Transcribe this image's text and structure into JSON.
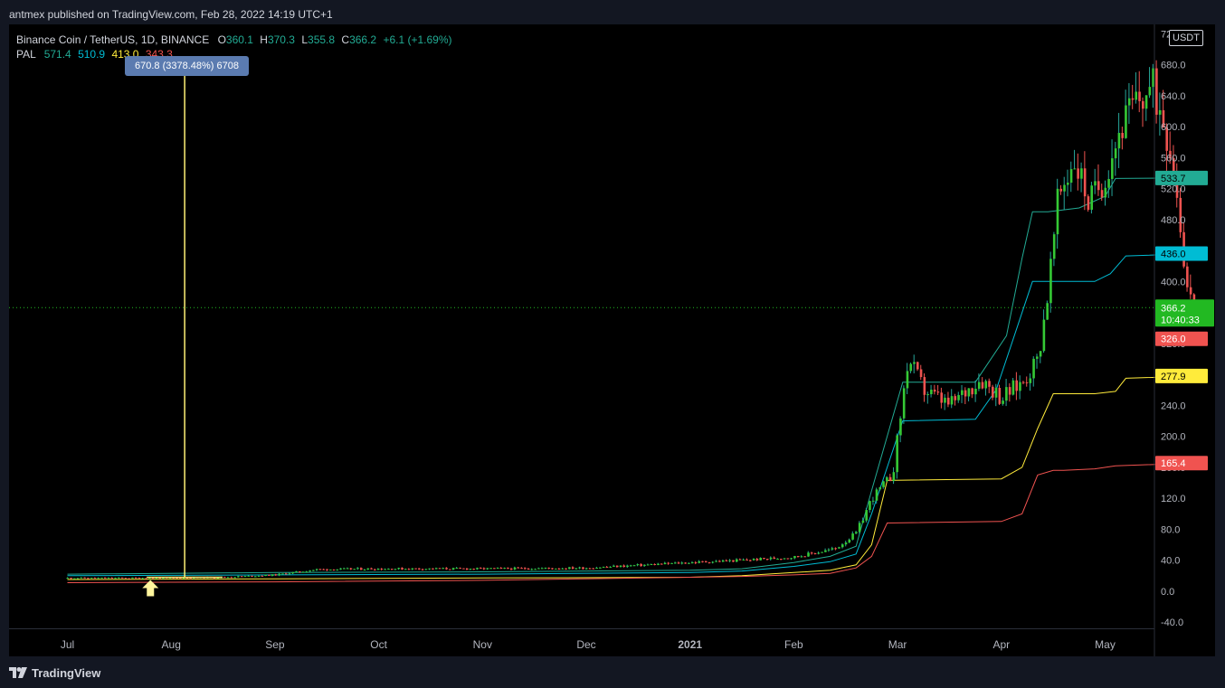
{
  "header": {
    "published": "antmex published on TradingView.com, Feb 28, 2022 14:19 UTC+1"
  },
  "legend": {
    "symbol": "Binance Coin / TetherUS, 1D, BINANCE",
    "open_label": "O",
    "open": "360.1",
    "high_label": "H",
    "high": "370.3",
    "low_label": "L",
    "low": "355.8",
    "close_label": "C",
    "close": "366.2",
    "change": "+6.1 (+1.69%)",
    "indicator": "PAL",
    "ind_values": [
      "571.4",
      "510.9",
      "413.0",
      "343.3"
    ]
  },
  "measure_label": "670.8 (3378.48%) 6708",
  "currency_label": "USDT",
  "brand": "TradingView",
  "colors": {
    "up": "#26a69a",
    "down": "#ef5350",
    "green": "#22ab94",
    "cyan": "#00bcd4",
    "yellow": "#ffeb3b",
    "red": "#f05350",
    "measure": "#fff176",
    "label_blue": "#5b7bb0"
  },
  "chart_data": {
    "type": "line",
    "title": "Binance Coin / TetherUS, 1D, BINANCE",
    "x_ticks": [
      "Jul",
      "Aug",
      "Sep",
      "Oct",
      "Nov",
      "Dec",
      "2021",
      "Feb",
      "Mar",
      "Apr",
      "May"
    ],
    "y_ticks": [
      "720.0",
      "680.0",
      "640.0",
      "600.0",
      "560.0",
      "520.0",
      "480.0",
      "440.0",
      "400.0",
      "360.0",
      "320.0",
      "280.0",
      "240.0",
      "200.0",
      "160.0",
      "120.0",
      "80.0",
      "40.0",
      "0.0",
      "-40.0"
    ],
    "ylim": [
      -48,
      732
    ],
    "price": {
      "months": [
        0,
        0.5,
        1,
        1.5,
        2,
        2.4,
        3,
        4,
        5,
        6,
        6.5,
        7,
        7.4,
        7.6,
        7.75,
        7.95,
        8.1,
        8.25,
        8.5,
        8.8,
        9.0,
        9.2,
        9.35,
        9.45,
        9.55,
        9.7,
        9.85,
        10.0,
        10.15,
        10.3,
        10.45,
        10.55,
        10.65,
        10.72,
        10.8,
        10.87
      ],
      "values": [
        17,
        17,
        17,
        18,
        21,
        28,
        29,
        29,
        30,
        37,
        40,
        44,
        55,
        75,
        120,
        150,
        300,
        260,
        240,
        275,
        250,
        270,
        300,
        390,
        510,
        560,
        500,
        540,
        600,
        630,
        650,
        620,
        560,
        480,
        380,
        366
      ]
    },
    "series": [
      {
        "name": "571.4",
        "color": "#22ab94",
        "months": [
          0,
          2,
          4,
          6,
          6.5,
          7,
          7.35,
          7.6,
          7.75,
          8.05,
          8.75,
          9.05,
          9.2,
          9.3,
          9.45,
          9.75,
          10.0,
          10.1,
          10.87
        ],
        "values": [
          22,
          24,
          25,
          27,
          29,
          37,
          45,
          58,
          130,
          270,
          270,
          330,
          430,
          490,
          490,
          495,
          510,
          533,
          533.7
        ]
      },
      {
        "name": "510.9",
        "color": "#00bcd4",
        "months": [
          0,
          2,
          4,
          6,
          6.5,
          7,
          7.35,
          7.6,
          7.75,
          8.05,
          8.75,
          8.95,
          9.1,
          9.3,
          9.6,
          9.9,
          10.05,
          10.2,
          10.87
        ],
        "values": [
          20,
          21,
          22,
          24,
          26,
          32,
          38,
          48,
          100,
          220,
          222,
          260,
          320,
          400,
          400,
          400,
          410,
          433,
          436
        ]
      },
      {
        "name": "413.0",
        "color": "#ffeb3b",
        "months": [
          0,
          2,
          4,
          6,
          6.5,
          7,
          7.35,
          7.6,
          7.75,
          7.9,
          9.0,
          9.2,
          9.35,
          9.5,
          9.6,
          9.9,
          10.1,
          10.2,
          10.87
        ],
        "values": [
          15,
          16,
          17,
          18,
          20,
          24,
          27,
          34,
          60,
          143,
          145,
          160,
          210,
          255,
          255,
          255,
          258,
          275,
          277.9
        ]
      },
      {
        "name": "343.3",
        "color": "#f05350",
        "months": [
          0,
          2,
          4,
          5,
          6,
          6.5,
          7,
          7.35,
          7.6,
          7.75,
          7.9,
          9.0,
          9.2,
          9.35,
          9.5,
          9.6,
          9.9,
          10.1,
          10.87
        ],
        "values": [
          11,
          12,
          14,
          16,
          18,
          19,
          21,
          23,
          30,
          45,
          88,
          90,
          100,
          150,
          156,
          156,
          158,
          162,
          165.4
        ]
      }
    ],
    "current_price": 366.2,
    "countdown": "10:40:33",
    "price_labels": [
      {
        "text": "533.7",
        "value": 533.7,
        "color": "#22ab94",
        "fg": "#000000"
      },
      {
        "text": "436.0",
        "value": 436.0,
        "color": "#00bcd4",
        "fg": "#000000"
      },
      {
        "text": "326.0",
        "value": 326.0,
        "color": "#f05350",
        "fg": "#ffffff"
      },
      {
        "text": "277.9",
        "value": 277.9,
        "color": "#ffeb3b",
        "fg": "#000000"
      },
      {
        "text": "165.4",
        "value": 165.4,
        "color": "#f05350",
        "fg": "#ffffff"
      }
    ],
    "current_color": "#22b922",
    "measure": {
      "from_value": 18,
      "to_value": 688.8,
      "month": 1.13
    },
    "grid": false
  }
}
